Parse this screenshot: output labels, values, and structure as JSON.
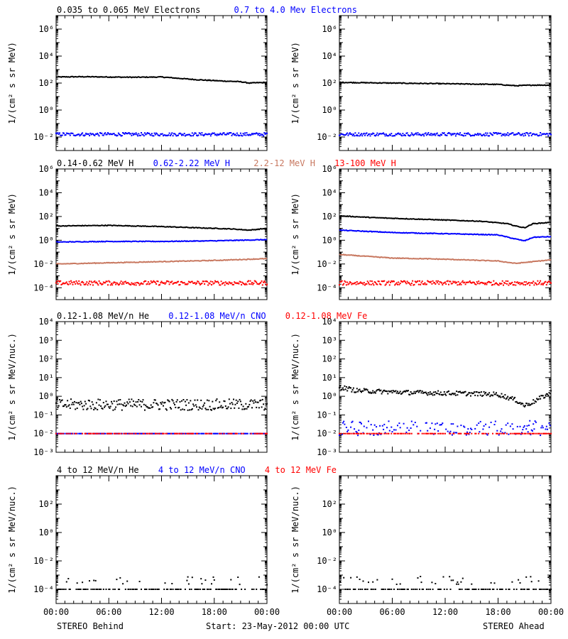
{
  "colors": {
    "black": "#000000",
    "blue": "#0000ff",
    "tan": "#c87860",
    "red": "#ff0000",
    "axis": "#000000",
    "background": "#ffffff"
  },
  "legend_rows": [
    {
      "items": [
        {
          "text": "0.035 to 0.065 MeV Electrons",
          "color": "#000000"
        },
        {
          "text": "0.7 to 4.0 Mev Electrons",
          "color": "#0000ff"
        }
      ]
    },
    {
      "items": [
        {
          "text": "0.14-0.62 MeV H",
          "color": "#000000"
        },
        {
          "text": "0.62-2.22 MeV H",
          "color": "#0000ff"
        },
        {
          "text": "2.2-12 MeV H",
          "color": "#c87860"
        },
        {
          "text": "13-100 MeV H",
          "color": "#ff0000"
        }
      ]
    },
    {
      "items": [
        {
          "text": "0.12-1.08 MeV/n He",
          "color": "#000000"
        },
        {
          "text": "0.12-1.08 MeV/n CNO",
          "color": "#0000ff"
        },
        {
          "text": "0.12-1.08 MeV Fe",
          "color": "#ff0000"
        }
      ]
    },
    {
      "items": [
        {
          "text": "4 to 12 MeV/n He",
          "color": "#000000"
        },
        {
          "text": "4 to 12 MeV/n CNO",
          "color": "#0000ff"
        },
        {
          "text": "4 to 12 MeV Fe",
          "color": "#ff0000"
        }
      ]
    }
  ],
  "footer": {
    "left": "STEREO Behind",
    "center": "Start: 23-May-2012 00:00 UTC",
    "right": "STEREO Ahead"
  },
  "chart_data": [
    {
      "panel": "electrons-behind",
      "type": "scatter",
      "yscale": "log",
      "ylabel": "1/(cm² s sr MeV)",
      "ylim_exp": [
        -3,
        7
      ],
      "ytick_exponents": [
        -2,
        0,
        2,
        4,
        6
      ],
      "minor_yticks": true,
      "x_hours": [
        0,
        24
      ],
      "xticks_hours": [
        0,
        6,
        12,
        18,
        24
      ],
      "xtick_labels": [],
      "series": [
        {
          "color": "#000000",
          "style": "line",
          "points": [
            [
              0,
              2.45
            ],
            [
              3,
              2.47
            ],
            [
              6,
              2.45
            ],
            [
              9,
              2.43
            ],
            [
              12,
              2.45
            ],
            [
              14,
              2.35
            ],
            [
              16,
              2.25
            ],
            [
              19,
              2.15
            ],
            [
              21,
              2.1
            ],
            [
              22,
              2.0
            ],
            [
              24,
              2.05
            ]
          ]
        },
        {
          "color": "#0000ff",
          "style": "dots",
          "jitter": 0.12,
          "sparse": 0,
          "points": [
            [
              0,
              -1.8
            ],
            [
              24,
              -1.8
            ]
          ]
        }
      ]
    },
    {
      "panel": "electrons-ahead",
      "type": "scatter",
      "yscale": "log",
      "ylabel": "1/(cm² s sr MeV)",
      "ylim_exp": [
        -3,
        7
      ],
      "ytick_exponents": [
        -2,
        0,
        2,
        4,
        6
      ],
      "minor_yticks": true,
      "x_hours": [
        0,
        24
      ],
      "xticks_hours": [
        0,
        6,
        12,
        18,
        24
      ],
      "xtick_labels": [],
      "series": [
        {
          "color": "#000000",
          "style": "line",
          "points": [
            [
              0,
              2.05
            ],
            [
              6,
              2.0
            ],
            [
              12,
              1.95
            ],
            [
              18,
              1.9
            ],
            [
              20,
              1.8
            ],
            [
              22,
              1.85
            ],
            [
              24,
              1.85
            ]
          ]
        },
        {
          "color": "#0000ff",
          "style": "dots",
          "jitter": 0.12,
          "sparse": 0,
          "points": [
            [
              0,
              -1.8
            ],
            [
              24,
              -1.8
            ]
          ]
        }
      ]
    },
    {
      "panel": "protons-behind",
      "type": "scatter",
      "yscale": "log",
      "ylabel": "1/(cm² s sr MeV)",
      "ylim_exp": [
        -5,
        6
      ],
      "ytick_exponents": [
        -4,
        -2,
        0,
        2,
        4,
        6
      ],
      "minor_yticks": true,
      "x_hours": [
        0,
        24
      ],
      "xticks_hours": [
        0,
        6,
        12,
        18,
        24
      ],
      "xtick_labels": [],
      "series": [
        {
          "color": "#000000",
          "style": "line",
          "points": [
            [
              0,
              1.2
            ],
            [
              6,
              1.25
            ],
            [
              12,
              1.15
            ],
            [
              16,
              1.05
            ],
            [
              20,
              0.95
            ],
            [
              22,
              0.85
            ],
            [
              24,
              1.0
            ]
          ]
        },
        {
          "color": "#0000ff",
          "style": "line",
          "points": [
            [
              0,
              -0.15
            ],
            [
              6,
              -0.1
            ],
            [
              12,
              -0.1
            ],
            [
              18,
              -0.05
            ],
            [
              24,
              0.05
            ]
          ]
        },
        {
          "color": "#c87860",
          "style": "line",
          "points": [
            [
              0,
              -2.0
            ],
            [
              6,
              -1.9
            ],
            [
              12,
              -1.8
            ],
            [
              18,
              -1.7
            ],
            [
              24,
              -1.55
            ]
          ]
        },
        {
          "color": "#ff0000",
          "style": "dots",
          "jitter": 0.18,
          "sparse": 0,
          "points": [
            [
              0,
              -3.6
            ],
            [
              24,
              -3.6
            ]
          ]
        }
      ]
    },
    {
      "panel": "protons-ahead",
      "type": "scatter",
      "yscale": "log",
      "ylabel": "1/(cm² s sr MeV)",
      "ylim_exp": [
        -5,
        6
      ],
      "ytick_exponents": [
        -4,
        -2,
        0,
        2,
        4,
        6
      ],
      "minor_yticks": true,
      "x_hours": [
        0,
        24
      ],
      "xticks_hours": [
        0,
        6,
        12,
        18,
        24
      ],
      "xtick_labels": [],
      "series": [
        {
          "color": "#000000",
          "style": "line",
          "points": [
            [
              0,
              2.05
            ],
            [
              4,
              1.9
            ],
            [
              10,
              1.75
            ],
            [
              16,
              1.6
            ],
            [
              19,
              1.4
            ],
            [
              20,
              1.2
            ],
            [
              21,
              1.05
            ],
            [
              22,
              1.4
            ],
            [
              24,
              1.5
            ]
          ]
        },
        {
          "color": "#0000ff",
          "style": "line",
          "points": [
            [
              0,
              0.85
            ],
            [
              6,
              0.65
            ],
            [
              12,
              0.55
            ],
            [
              18,
              0.45
            ],
            [
              20,
              0.1
            ],
            [
              21,
              -0.05
            ],
            [
              22,
              0.25
            ],
            [
              24,
              0.3
            ]
          ]
        },
        {
          "color": "#c87860",
          "style": "line",
          "points": [
            [
              0,
              -1.2
            ],
            [
              6,
              -1.5
            ],
            [
              12,
              -1.6
            ],
            [
              18,
              -1.75
            ],
            [
              20,
              -1.95
            ],
            [
              22,
              -1.8
            ],
            [
              24,
              -1.65
            ]
          ]
        },
        {
          "color": "#ff0000",
          "style": "dots",
          "jitter": 0.18,
          "sparse": 0,
          "points": [
            [
              0,
              -3.6
            ],
            [
              24,
              -3.6
            ]
          ]
        }
      ]
    },
    {
      "panel": "heavy-ions-low-behind",
      "type": "scatter",
      "yscale": "log",
      "ylabel": "1/(cm² s sr MeV/nuc.)",
      "ylim_exp": [
        -3,
        4
      ],
      "ytick_exponents": [
        -3,
        -2,
        -1,
        0,
        1,
        2,
        3,
        4
      ],
      "minor_yticks": true,
      "x_hours": [
        0,
        24
      ],
      "xticks_hours": [
        0,
        6,
        12,
        18,
        24
      ],
      "xtick_labels": [],
      "series": [
        {
          "color": "#000000",
          "style": "dots",
          "jitter": 0.3,
          "sparse": 0,
          "points": [
            [
              0,
              -0.45
            ],
            [
              24,
              -0.45
            ]
          ]
        },
        {
          "color": "#0000ff",
          "style": "dots",
          "jitter": 0.0,
          "sparse": 0.25,
          "points": [
            [
              0,
              -2.0
            ],
            [
              24,
              -2.0
            ]
          ]
        },
        {
          "color": "#ff0000",
          "style": "dots",
          "jitter": 0.0,
          "sparse": 0.55,
          "points": [
            [
              0,
              -2.0
            ],
            [
              24,
              -2.0
            ]
          ]
        }
      ]
    },
    {
      "panel": "heavy-ions-low-ahead",
      "type": "scatter",
      "yscale": "log",
      "ylabel": "1/(cm² s sr MeV/nuc.)",
      "ylim_exp": [
        -3,
        4
      ],
      "ytick_exponents": [
        -3,
        -2,
        -1,
        0,
        1,
        2,
        3,
        4
      ],
      "minor_yticks": true,
      "x_hours": [
        0,
        24
      ],
      "xticks_hours": [
        0,
        6,
        12,
        18,
        24
      ],
      "xtick_labels": [],
      "series": [
        {
          "color": "#000000",
          "style": "dots",
          "jitter": 0.12,
          "sparse": 0,
          "points": [
            [
              0,
              0.5
            ],
            [
              2,
              0.3
            ],
            [
              8,
              0.2
            ],
            [
              14,
              0.15
            ],
            [
              18,
              0.1
            ],
            [
              20,
              -0.2
            ],
            [
              21,
              -0.5
            ],
            [
              22,
              -0.3
            ],
            [
              24,
              0.2
            ]
          ]
        },
        {
          "color": "#0000ff",
          "style": "dots",
          "jitter": 0.4,
          "sparse": 0.35,
          "points": [
            [
              0,
              -1.7
            ],
            [
              24,
              -1.7
            ]
          ]
        },
        {
          "color": "#ff0000",
          "style": "dots",
          "jitter": 0.0,
          "sparse": 0.45,
          "points": [
            [
              0,
              -2.0
            ],
            [
              24,
              -2.0
            ]
          ]
        }
      ]
    },
    {
      "panel": "heavy-ions-high-behind",
      "type": "scatter",
      "yscale": "log",
      "ylabel": "1/(cm² s sr MeV/nuc.)",
      "ylim_exp": [
        -5,
        4
      ],
      "ytick_exponents": [
        -4,
        -2,
        0,
        2
      ],
      "minor_yticks": true,
      "x_hours": [
        0,
        24
      ],
      "xticks_hours": [
        0,
        6,
        12,
        18,
        24
      ],
      "xtick_labels": [
        "00:00",
        "06:00",
        "12:00",
        "18:00",
        "00:00"
      ],
      "series": [
        {
          "color": "#000000",
          "style": "dots",
          "jitter": 0.35,
          "sparse": 0.4,
          "floor": -4.0,
          "points": [
            [
              0,
              -4.0
            ],
            [
              24,
              -4.0
            ]
          ]
        }
      ]
    },
    {
      "panel": "heavy-ions-high-ahead",
      "type": "scatter",
      "yscale": "log",
      "ylabel": "1/(cm² s sr MeV/nuc.)",
      "ylim_exp": [
        -5,
        4
      ],
      "ytick_exponents": [
        -4,
        -2,
        0,
        2
      ],
      "minor_yticks": true,
      "x_hours": [
        0,
        24
      ],
      "xticks_hours": [
        0,
        6,
        12,
        18,
        24
      ],
      "xtick_labels": [
        "00:00",
        "06:00",
        "12:00",
        "18:00",
        "00:00"
      ],
      "series": [
        {
          "color": "#000000",
          "style": "dots",
          "jitter": 0.35,
          "sparse": 0.4,
          "floor": -4.0,
          "points": [
            [
              0,
              -4.0
            ],
            [
              24,
              -4.0
            ]
          ]
        }
      ]
    }
  ]
}
